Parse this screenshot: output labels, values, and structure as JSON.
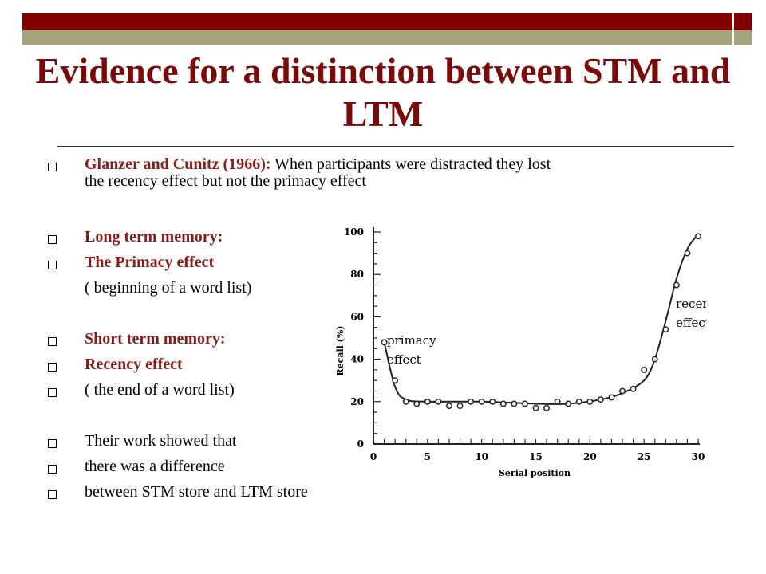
{
  "title": "Evidence for a distinction between STM and LTM",
  "colors": {
    "accent": "#800000",
    "band": "#a4a47a",
    "title": "#7a0a0a",
    "highlight": "#8b1a1a"
  },
  "bullets": [
    {
      "bold": "Glanzer and Cunitz (1966):",
      "text": " When participants were distracted they lost",
      "text2": "the recency effect but not the primacy effect"
    },
    {
      "bold": "Long term memory:"
    },
    {
      "bold": "The Primacy effect"
    },
    {
      "text": "( beginning of a word list)"
    },
    {
      "bold": "Short term memory:"
    },
    {
      "bold": "Recency effect"
    },
    {
      "text": "( the end of a word list)"
    },
    {
      "text": "Their work showed that"
    },
    {
      "text": "there was a difference"
    },
    {
      "text": "between STM store and LTM store"
    }
  ],
  "chart_data": {
    "type": "scatter",
    "xlabel": "Serial position",
    "ylabel": "Recall (%)",
    "xlim": [
      0,
      30
    ],
    "ylim": [
      0,
      100
    ],
    "xticks": [
      0,
      5,
      10,
      15,
      20,
      25,
      30
    ],
    "yticks": [
      0,
      20,
      40,
      60,
      80,
      100
    ],
    "x": [
      1,
      2,
      3,
      4,
      5,
      6,
      7,
      8,
      9,
      10,
      11,
      12,
      13,
      14,
      15,
      16,
      17,
      18,
      19,
      20,
      21,
      22,
      23,
      24,
      25,
      26,
      27,
      28,
      29,
      30
    ],
    "y": [
      48,
      30,
      20,
      19,
      20,
      20,
      18,
      18,
      20,
      20,
      20,
      19,
      19,
      19,
      17,
      17,
      20,
      19,
      20,
      20,
      21,
      22,
      25,
      26,
      35,
      40,
      54,
      75,
      90,
      98
    ],
    "curve": [
      [
        1,
        48
      ],
      [
        2,
        27
      ],
      [
        3,
        21
      ],
      [
        5,
        20
      ],
      [
        10,
        20
      ],
      [
        15,
        19
      ],
      [
        18,
        19
      ],
      [
        21,
        21
      ],
      [
        23,
        24
      ],
      [
        25,
        30
      ],
      [
        26,
        40
      ],
      [
        27,
        58
      ],
      [
        28,
        78
      ],
      [
        29,
        92
      ],
      [
        30,
        99
      ]
    ],
    "annotations": [
      {
        "text": "primacy",
        "text2": "effect"
      },
      {
        "text": "recency",
        "text2": "effect"
      }
    ]
  }
}
